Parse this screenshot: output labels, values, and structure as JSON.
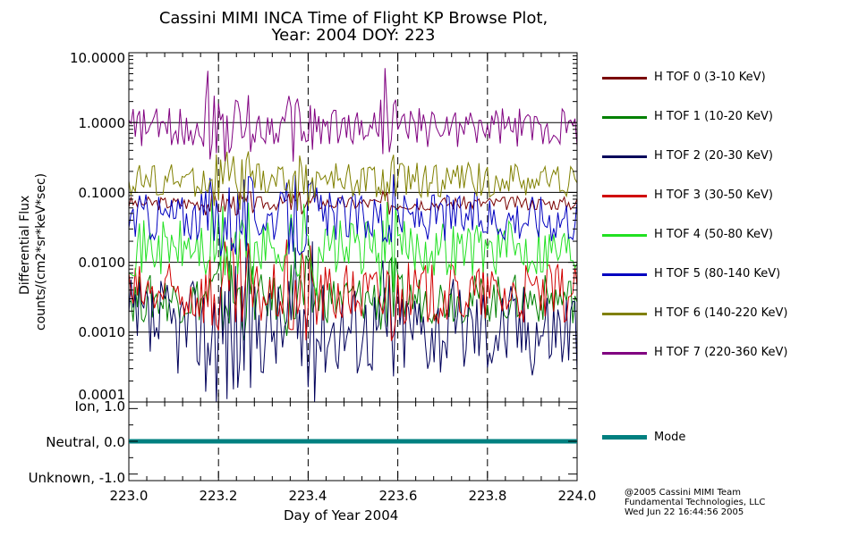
{
  "chart_data": {
    "type": "line",
    "title_line1": "Cassini MIMI INCA Time of Flight KP Browse Plot,",
    "title_line2": "Year: 2004 DOY: 223",
    "xlabel": "Day of Year 2004",
    "ylabel_line1": "Differential Flux",
    "ylabel_line2": "counts/(cm2*sr*keV*sec)",
    "xlim": [
      223.0,
      224.0
    ],
    "ylim": [
      0.0001,
      10
    ],
    "yscale": "log",
    "x_ticks": [
      "223.0",
      "223.2",
      "223.4",
      "223.6",
      "223.8",
      "224.0"
    ],
    "y_ticks": [
      "10.0000",
      "1.0000",
      "0.1000",
      "0.0100",
      "0.0010",
      "0.0001"
    ],
    "series": [
      {
        "name": "H TOF 0 (3-10 KeV)",
        "color": "#7a0000",
        "level": 0.07,
        "noise": 0.1,
        "spikes": []
      },
      {
        "name": "H TOF 1 (10-20 KeV)",
        "color": "#008000",
        "level": 0.003,
        "noise": 0.35,
        "spikes": []
      },
      {
        "name": "H TOF 2 (20-30 KeV)",
        "color": "#00005a",
        "level": 0.0012,
        "noise": 0.7,
        "spikes": []
      },
      {
        "name": "H TOF 3 (30-50 KeV)",
        "color": "#d00000",
        "level": 0.0035,
        "noise": 0.45,
        "spikes": []
      },
      {
        "name": "H TOF 4 (50-80 KeV)",
        "color": "#22e022",
        "level": 0.016,
        "noise": 0.4,
        "spikes": []
      },
      {
        "name": "H TOF 5 (80-140 KeV)",
        "color": "#0000c0",
        "level": 0.045,
        "noise": 0.35,
        "spikes": []
      },
      {
        "name": "H TOF 6 (140-220 KeV)",
        "color": "#808000",
        "level": 0.15,
        "noise": 0.25,
        "spikes": []
      },
      {
        "name": "H TOF 7 (220-360 KeV)",
        "color": "#800080",
        "level": 0.85,
        "noise": 0.28,
        "spikes": [
          [
            223.175,
            5.5
          ],
          [
            223.37,
            1.8
          ],
          [
            223.57,
            6.0
          ]
        ]
      }
    ],
    "mode_panel": {
      "legend": "Mode",
      "color": "#008080",
      "value": 0.0,
      "ylim": [
        -1.2,
        1.2
      ],
      "y_ticks": [
        "Ion, 1.0",
        "Neutral, 0.0",
        "Unknown, -1.0"
      ]
    }
  },
  "credits": {
    "line1": "@2005 Cassini MIMI Team",
    "line2": "Fundamental Technologies, LLC",
    "line3": "Wed Jun 22 16:44:56 2005"
  }
}
